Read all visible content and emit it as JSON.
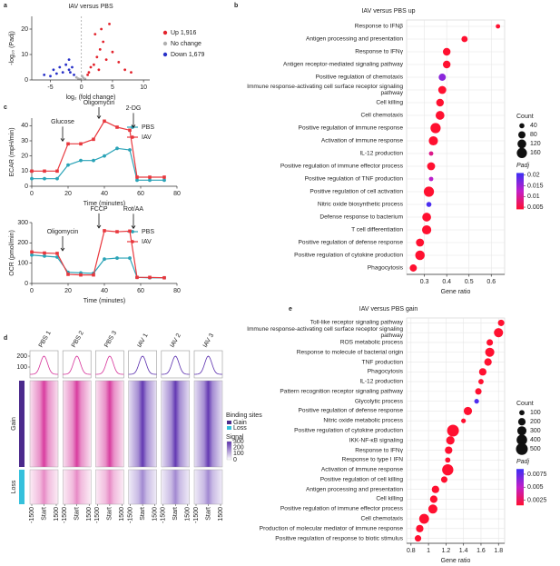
{
  "chart_data": [
    {
      "panel": "a",
      "type": "scatter",
      "title": "IAV versus PBS",
      "x_label": "log₂ (fold change)",
      "y_label": "-log₁₀ (Padj)",
      "xlim": [
        -8,
        11
      ],
      "xticks": [
        -5,
        0,
        5,
        10
      ],
      "ylim": [
        0,
        25
      ],
      "yticks": [
        0,
        10,
        20
      ],
      "series": [
        {
          "name": "Up 1,916",
          "color": "#e3232c",
          "x": [
            1.2,
            2,
            2.5,
            3,
            1.5,
            4,
            3.5,
            5,
            2.2,
            6,
            1,
            7,
            4.5,
            3.2,
            8,
            2.8
          ],
          "values": [
            3,
            6,
            9,
            12,
            5,
            8,
            15,
            11,
            18,
            7,
            2,
            4,
            22,
            20,
            3,
            4
          ]
        },
        {
          "name": "No change",
          "color": "#b0b0b0",
          "x": [
            -0.5,
            0.3,
            0.1,
            -0.2,
            0.6,
            -0.8
          ],
          "values": [
            0.5,
            0.8,
            1.5,
            0.3,
            0.4,
            1
          ]
        },
        {
          "name": "Down 1,679",
          "color": "#2831c8",
          "x": [
            -1.2,
            -2,
            -3,
            -2.5,
            -4,
            -1.5,
            -3.5,
            -5,
            -2,
            -6,
            -1.8,
            -4.5
          ],
          "values": [
            2,
            4,
            3,
            6,
            2.5,
            5,
            5,
            1.5,
            8,
            2,
            3,
            4
          ]
        }
      ]
    },
    {
      "panel": "b",
      "type": "dot",
      "title": "IAV versus PBS up",
      "x_label": "Gene ratio",
      "grid": true,
      "categories": [
        "Response to IFNβ",
        "Antigen processing and presentation",
        "Response to IFNγ",
        "Antigen receptor-mediated signaling pathway",
        "Positive regulation of chemotaxis",
        "Immune response-activating cell surface receptor signaling pathway",
        "Cell killing",
        "Cell chemotaxis",
        "Positive regulation of immune response",
        "Activation of immune response",
        "IL-12 production",
        "Positive regulation of immune effector process",
        "Positive regulation of TNF production",
        "Positive regulation of cell activation",
        "Nitric oxide biosynthetic process",
        "Defense response to bacterium",
        "T cell differentiation",
        "Positive regulation of defense response",
        "Positive regulation of cytokine production",
        "Phagocytosis"
      ],
      "values": [
        0.63,
        0.48,
        0.4,
        0.4,
        0.38,
        0.38,
        0.37,
        0.37,
        0.35,
        0.34,
        0.33,
        0.33,
        0.33,
        0.32,
        0.32,
        0.31,
        0.31,
        0.28,
        0.28,
        0.25
      ],
      "counts": [
        30,
        60,
        90,
        90,
        80,
        100,
        90,
        120,
        160,
        130,
        30,
        100,
        30,
        160,
        40,
        120,
        130,
        100,
        140,
        80
      ],
      "padj": [
        0.001,
        0.001,
        0.001,
        0.001,
        0.016,
        0.001,
        0.001,
        0.001,
        0.001,
        0.001,
        0.009,
        0.001,
        0.013,
        0.001,
        0.02,
        0.001,
        0.001,
        0.001,
        0.001,
        0.001
      ],
      "xlim": [
        0.22,
        0.66
      ],
      "xticks": [
        0.3,
        0.4,
        0.5,
        0.6
      ],
      "size_legend": {
        "title": "Count",
        "values": [
          40,
          80,
          120,
          160
        ]
      },
      "color_legend": {
        "title": "Padj",
        "lim": [
          0.004,
          0.021
        ],
        "ticks": [
          0.02,
          0.015,
          0.01,
          0.005
        ],
        "colors": [
          "#ff1030",
          "#c21fc8",
          "#3b2ff5"
        ]
      }
    },
    {
      "panel": "c",
      "type": "line",
      "y_label": "ECAR (mpH/min)",
      "x_label": "Time (minutes)",
      "x": [
        0,
        7,
        14,
        20,
        27,
        34,
        40,
        47,
        54,
        58,
        65,
        73
      ],
      "xlim": [
        0,
        80
      ],
      "xticks": [
        0,
        20,
        40,
        60,
        80
      ],
      "ylim": [
        0,
        45
      ],
      "yticks": [
        0,
        10,
        20,
        30,
        40
      ],
      "annotations": [
        "Glucose",
        "Oligomycin",
        "2-DG"
      ],
      "series": [
        {
          "name": "PBS",
          "color": "#2aa3b7",
          "marker": "circle",
          "values": [
            5,
            5,
            5,
            14,
            17,
            17,
            20,
            25,
            24,
            4,
            4,
            4
          ]
        },
        {
          "name": "IAV",
          "color": "#e8373d",
          "marker": "square",
          "values": [
            10,
            10,
            10,
            28,
            28,
            31,
            43,
            39,
            37,
            6,
            6,
            6
          ]
        }
      ]
    },
    {
      "type": "line",
      "y_label": "OCR (pmol/min)",
      "x_label": "Time (minutes)",
      "x": [
        0,
        7,
        14,
        20,
        27,
        34,
        40,
        47,
        54,
        58,
        65,
        73
      ],
      "xlim": [
        0,
        80
      ],
      "xticks": [
        0,
        20,
        40,
        60,
        80
      ],
      "ylim": [
        0,
        300
      ],
      "yticks": [
        0,
        100,
        200,
        300
      ],
      "annotations": [
        "Oligomycin",
        "FCCP",
        "Rot/AA"
      ],
      "series": [
        {
          "name": "PBS",
          "color": "#2aa3b7",
          "marker": "circle",
          "values": [
            140,
            135,
            130,
            55,
            52,
            50,
            120,
            125,
            125,
            30,
            28,
            28
          ]
        },
        {
          "name": "IAV",
          "color": "#e8373d",
          "marker": "square",
          "values": [
            155,
            150,
            148,
            45,
            42,
            42,
            260,
            255,
            258,
            30,
            30,
            28
          ]
        }
      ]
    },
    {
      "panel": "d",
      "type": "heatmap",
      "columns": [
        {
          "name": "PBS 1",
          "color": "#d6339a"
        },
        {
          "name": "PBS 2",
          "color": "#d6339a"
        },
        {
          "name": "PBS 3",
          "color": "#d6339a"
        },
        {
          "name": "IAV 1",
          "color": "#5b2fae"
        },
        {
          "name": "IAV 2",
          "color": "#5b2fae"
        },
        {
          "name": "IAV 3",
          "color": "#5b2fae"
        }
      ],
      "rows": [
        {
          "name": "Gain",
          "color": "#4b2a8c"
        },
        {
          "name": "Loss",
          "color": "#35c1dc"
        }
      ],
      "legend_title": "Binding sites",
      "xlim": [
        -1500,
        1500
      ],
      "xticks": [
        -1500,
        {
          "value": 0,
          "label": "Start"
        },
        1500
      ],
      "profile_ylim": [
        0,
        250
      ],
      "profile_yticks": [
        200,
        100
      ],
      "signal_legend": {
        "title": "Signal",
        "lim": [
          0,
          300
        ],
        "ticks": [
          300,
          200,
          100,
          0
        ],
        "colors": [
          "#ffffff",
          "#5b2fae"
        ]
      }
    },
    {
      "panel": "e",
      "type": "dot",
      "title": "IAV versus PBS gain",
      "x_label": "Gene ratio",
      "grid": true,
      "categories": [
        "Toll-like receptor signaling pathway",
        "Immune response-activating cell surface receptor signaling pathway",
        "ROS metabolic process",
        "Response to molecule of bacterial origin",
        "TNF production",
        "Phagocytosis",
        "IL-12 production",
        "Pattern recognition receptor signaling pathway",
        "Glycolytic process",
        "Positive regulation of defense response",
        "Nitric oxide metabolic process",
        "Positive regulation of cytokine production",
        "IKK-NF-κB signaling",
        "Response to IFNγ",
        "Response to type I IFN",
        "Activation of immune response",
        "Positive regulation of cell killing",
        "Antigen processing and presentation",
        "Cell killing",
        "Positive regulation of immune effector process",
        "Cell chemotaxis",
        "Production of molecular mediator of immune response",
        "Positive regulation of response to biotic stimulus"
      ],
      "values": [
        1.83,
        1.8,
        1.7,
        1.7,
        1.68,
        1.62,
        1.6,
        1.57,
        1.55,
        1.45,
        1.4,
        1.28,
        1.25,
        1.23,
        1.22,
        1.22,
        1.18,
        1.08,
        1.06,
        1.05,
        0.95,
        0.9,
        0.88
      ],
      "counts": [
        150,
        300,
        150,
        300,
        200,
        200,
        100,
        150,
        80,
        250,
        80,
        500,
        250,
        200,
        100,
        450,
        150,
        200,
        200,
        300,
        350,
        200,
        150
      ],
      "padj": [
        0.0005,
        0.0005,
        0.0005,
        0.0005,
        0.0005,
        0.0005,
        0.0005,
        0.0005,
        0.008,
        0.0005,
        0.0005,
        0.0005,
        0.0005,
        0.0005,
        0.0005,
        0.0005,
        0.0005,
        0.0005,
        0.0005,
        0.0005,
        0.0005,
        0.0005,
        0.0005
      ],
      "xlim": [
        0.75,
        1.87
      ],
      "xticks": [
        0.8,
        1.0,
        1.2,
        1.4,
        1.6,
        1.8
      ],
      "size_legend": {
        "title": "Count",
        "values": [
          100,
          200,
          300,
          400,
          500
        ]
      },
      "color_legend": {
        "title": "Padj",
        "lim": [
          0.0015,
          0.0085
        ],
        "ticks": [
          0.0075,
          0.005,
          0.0025
        ],
        "colors": [
          "#ff1030",
          "#c21fc8",
          "#3b2ff5"
        ]
      }
    }
  ]
}
